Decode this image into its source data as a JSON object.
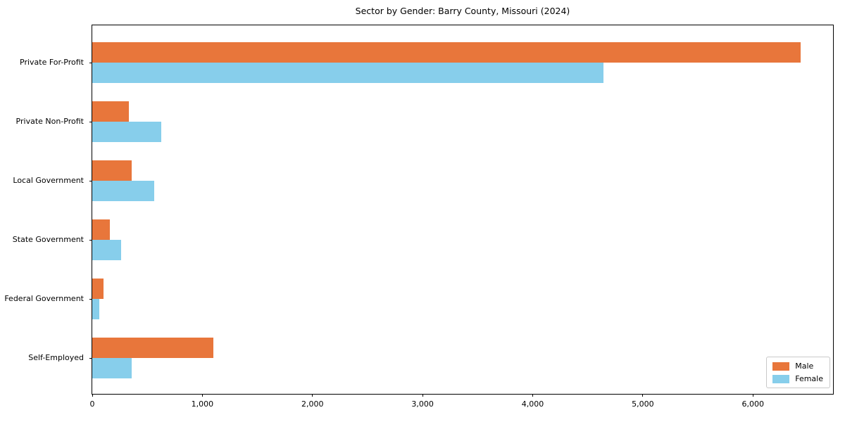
{
  "chart_data": {
    "type": "bar",
    "orientation": "horizontal",
    "title": "Sector by Gender: Barry County, Missouri (2024)",
    "categories": [
      "Private For-Profit",
      "Private Non-Profit",
      "Local Government",
      "State Government",
      "Federal Government",
      "Self-Employed"
    ],
    "series": [
      {
        "name": "Male",
        "color": "#E8763B",
        "values": [
          6430,
          330,
          355,
          160,
          100,
          1100
        ]
      },
      {
        "name": "Female",
        "color": "#87CEEB",
        "values": [
          4640,
          625,
          565,
          260,
          65,
          355
        ]
      }
    ],
    "xlabel": "",
    "ylabel": "",
    "xlim": [
      0,
      6740
    ],
    "xticks": [
      0,
      1000,
      2000,
      3000,
      4000,
      5000,
      6000
    ],
    "xtick_labels": [
      "0",
      "1,000",
      "2,000",
      "3,000",
      "4,000",
      "5,000",
      "6,000"
    ],
    "grid": false,
    "legend": {
      "position": "lower right",
      "entries": [
        "Male",
        "Female"
      ]
    }
  }
}
